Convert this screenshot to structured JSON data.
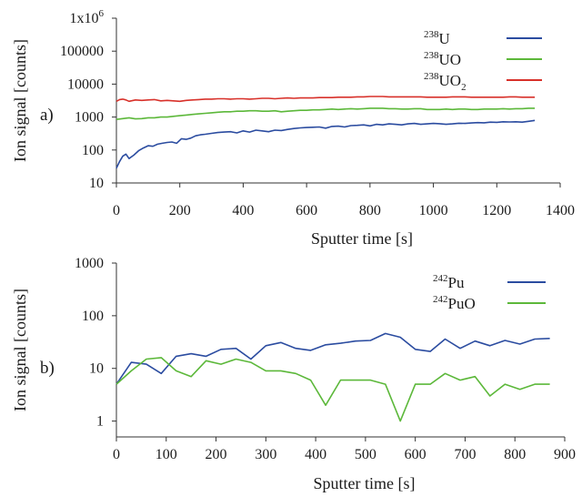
{
  "chart_data": [
    {
      "type": "line",
      "panel_label": "a)",
      "xlabel": "Sputter time [s]",
      "ylabel": "Ion signal [counts]",
      "xlim": [
        0,
        1400
      ],
      "ylim": [
        10,
        1000000
      ],
      "yscale": "log",
      "xticks": [
        "0",
        "200",
        "400",
        "600",
        "800",
        "1000",
        "1200",
        "1400"
      ],
      "xtick_values": [
        0,
        200,
        400,
        600,
        800,
        1000,
        1200,
        1400
      ],
      "yticks": [
        "10",
        "100",
        "1000",
        "10000",
        "100000",
        "1x10"
      ],
      "ytick_sup": [
        "",
        "",
        "",
        "",
        "",
        "6"
      ],
      "ytick_values": [
        10,
        100,
        1000,
        10000,
        100000,
        1000000
      ],
      "legend_position": "top-right",
      "series": [
        {
          "legend_mass": "238",
          "legend_name": "U",
          "legend_sub": "",
          "color": "#2b4ca0",
          "x": [
            0,
            10,
            20,
            30,
            40,
            55,
            70,
            85,
            100,
            115,
            130,
            145,
            160,
            175,
            190,
            205,
            220,
            235,
            250,
            265,
            280,
            300,
            320,
            340,
            360,
            380,
            400,
            420,
            440,
            460,
            480,
            500,
            520,
            540,
            560,
            580,
            600,
            620,
            640,
            660,
            680,
            700,
            720,
            740,
            760,
            780,
            800,
            820,
            840,
            860,
            880,
            900,
            920,
            940,
            960,
            980,
            1000,
            1020,
            1040,
            1060,
            1080,
            1100,
            1120,
            1140,
            1160,
            1180,
            1200,
            1220,
            1240,
            1260,
            1280,
            1300,
            1320
          ],
          "y": [
            28,
            45,
            65,
            75,
            55,
            70,
            95,
            115,
            135,
            130,
            150,
            160,
            170,
            175,
            160,
            220,
            210,
            230,
            270,
            290,
            300,
            320,
            340,
            350,
            360,
            330,
            380,
            350,
            400,
            380,
            360,
            400,
            390,
            420,
            450,
            470,
            480,
            490,
            500,
            460,
            520,
            530,
            500,
            550,
            560,
            580,
            540,
            600,
            580,
            620,
            600,
            580,
            620,
            640,
            600,
            620,
            640,
            630,
            600,
            620,
            650,
            640,
            660,
            680,
            670,
            700,
            690,
            720,
            710,
            720,
            700,
            740,
            790
          ]
        },
        {
          "legend_mass": "238",
          "legend_name": "UO",
          "legend_sub": "",
          "color": "#5cb83a",
          "x": [
            0,
            20,
            40,
            60,
            80,
            100,
            120,
            140,
            160,
            180,
            200,
            220,
            240,
            260,
            280,
            300,
            320,
            340,
            360,
            380,
            400,
            420,
            440,
            460,
            480,
            500,
            520,
            540,
            560,
            580,
            600,
            620,
            640,
            660,
            680,
            700,
            720,
            740,
            760,
            780,
            800,
            820,
            840,
            860,
            880,
            900,
            920,
            940,
            960,
            980,
            1000,
            1020,
            1040,
            1060,
            1080,
            1100,
            1120,
            1140,
            1160,
            1180,
            1200,
            1220,
            1240,
            1260,
            1280,
            1300,
            1320
          ],
          "y": [
            850,
            900,
            950,
            880,
            900,
            950,
            950,
            1000,
            1000,
            1050,
            1100,
            1150,
            1200,
            1250,
            1300,
            1350,
            1400,
            1450,
            1450,
            1500,
            1500,
            1550,
            1550,
            1500,
            1500,
            1550,
            1450,
            1500,
            1550,
            1600,
            1600,
            1650,
            1650,
            1700,
            1750,
            1700,
            1750,
            1800,
            1750,
            1800,
            1850,
            1850,
            1850,
            1800,
            1800,
            1750,
            1750,
            1800,
            1800,
            1700,
            1700,
            1700,
            1750,
            1700,
            1750,
            1750,
            1700,
            1700,
            1750,
            1750,
            1750,
            1800,
            1750,
            1800,
            1800,
            1850,
            1850
          ]
        },
        {
          "legend_mass": "238",
          "legend_name": "UO",
          "legend_sub": "2",
          "color": "#d8312a",
          "x": [
            0,
            10,
            20,
            30,
            40,
            60,
            80,
            100,
            120,
            140,
            160,
            180,
            200,
            220,
            240,
            260,
            280,
            300,
            320,
            340,
            360,
            380,
            400,
            420,
            440,
            460,
            480,
            500,
            520,
            540,
            560,
            580,
            600,
            620,
            640,
            660,
            680,
            700,
            720,
            740,
            760,
            780,
            800,
            820,
            840,
            860,
            880,
            900,
            920,
            940,
            960,
            980,
            1000,
            1020,
            1040,
            1060,
            1080,
            1100,
            1120,
            1140,
            1160,
            1180,
            1200,
            1220,
            1240,
            1260,
            1280,
            1300,
            1320
          ],
          "y": [
            3000,
            3400,
            3500,
            3300,
            3000,
            3300,
            3200,
            3300,
            3400,
            3100,
            3200,
            3100,
            3000,
            3200,
            3300,
            3400,
            3500,
            3500,
            3600,
            3600,
            3500,
            3600,
            3600,
            3500,
            3600,
            3700,
            3700,
            3600,
            3700,
            3800,
            3700,
            3800,
            3800,
            3800,
            3900,
            3900,
            3900,
            4000,
            4000,
            4000,
            4100,
            4100,
            4200,
            4200,
            4200,
            4100,
            4100,
            4100,
            4100,
            4100,
            4100,
            4000,
            4000,
            4000,
            4000,
            4100,
            4100,
            4100,
            4000,
            4000,
            4000,
            4000,
            4000,
            4000,
            4100,
            4100,
            4000,
            4000,
            4000
          ]
        }
      ]
    },
    {
      "type": "line",
      "panel_label": "b)",
      "xlabel": "Sputter time [s]",
      "ylabel": "Ion signal [counts]",
      "xlim": [
        0,
        900
      ],
      "ylim": [
        0.5,
        1000
      ],
      "yscale": "log",
      "xticks": [
        "0",
        "100",
        "200",
        "300",
        "400",
        "500",
        "600",
        "700",
        "800",
        "900"
      ],
      "xtick_values": [
        0,
        100,
        200,
        300,
        400,
        500,
        600,
        700,
        800,
        900
      ],
      "yticks": [
        "1",
        "10",
        "100",
        "1000"
      ],
      "ytick_sup": [
        "",
        "",
        "",
        ""
      ],
      "ytick_values": [
        1,
        10,
        100,
        1000
      ],
      "legend_position": "top-right",
      "series": [
        {
          "legend_mass": "242",
          "legend_name": "Pu",
          "legend_sub": "",
          "color": "#2b4ca0",
          "x": [
            0,
            30,
            60,
            90,
            120,
            150,
            180,
            210,
            240,
            270,
            300,
            330,
            360,
            390,
            420,
            450,
            480,
            510,
            540,
            570,
            600,
            630,
            660,
            690,
            720,
            750,
            780,
            810,
            840,
            870
          ],
          "y": [
            5,
            13,
            12,
            8,
            17,
            19,
            17,
            23,
            24,
            15,
            27,
            31,
            24,
            22,
            28,
            30,
            33,
            34,
            46,
            39,
            23,
            21,
            36,
            24,
            33,
            27,
            34,
            29,
            36,
            37
          ]
        },
        {
          "legend_mass": "242",
          "legend_name": "PuO",
          "legend_sub": "",
          "color": "#5cb83a",
          "x": [
            0,
            30,
            60,
            90,
            120,
            150,
            180,
            210,
            240,
            270,
            300,
            330,
            360,
            390,
            420,
            450,
            480,
            510,
            540,
            570,
            600,
            630,
            660,
            690,
            720,
            750,
            780,
            810,
            840,
            870
          ],
          "y": [
            5,
            9,
            15,
            16,
            9,
            7,
            14,
            12,
            15,
            13,
            9,
            9,
            8,
            6,
            2,
            6,
            6,
            6,
            5,
            1,
            5,
            5,
            8,
            6,
            7,
            3,
            5,
            4,
            5,
            5
          ]
        }
      ]
    }
  ]
}
